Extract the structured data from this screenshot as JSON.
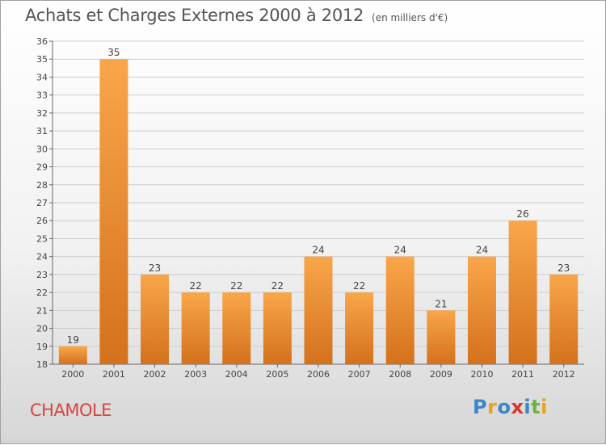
{
  "title": "Achats et Charges Externes 2000 à 2012",
  "subtitle": "(en milliers d'€)",
  "commune": "CHAMOLE",
  "logo": {
    "letters": [
      "P",
      "r",
      "o",
      "x",
      "i",
      "t",
      "i"
    ],
    "colors": [
      "#3a86c8",
      "#e8a317",
      "#3a86c8",
      "#d9342b",
      "#3a86c8",
      "#6db33f",
      "#e8a317"
    ]
  },
  "colors": {
    "bar_light": "#f9a64a",
    "bar_dark": "#d4711c",
    "grid": "#cccccc"
  },
  "chart_data": {
    "type": "bar",
    "categories": [
      "2000",
      "2001",
      "2002",
      "2003",
      "2004",
      "2005",
      "2006",
      "2007",
      "2008",
      "2009",
      "2010",
      "2011",
      "2012"
    ],
    "values": [
      19,
      35,
      23,
      22,
      22,
      22,
      24,
      22,
      24,
      21,
      24,
      26,
      23
    ],
    "ylim": [
      18,
      36
    ],
    "yticks": [
      18,
      19,
      20,
      21,
      22,
      23,
      24,
      25,
      26,
      27,
      28,
      29,
      30,
      31,
      32,
      33,
      34,
      35,
      36
    ],
    "grid": true
  }
}
